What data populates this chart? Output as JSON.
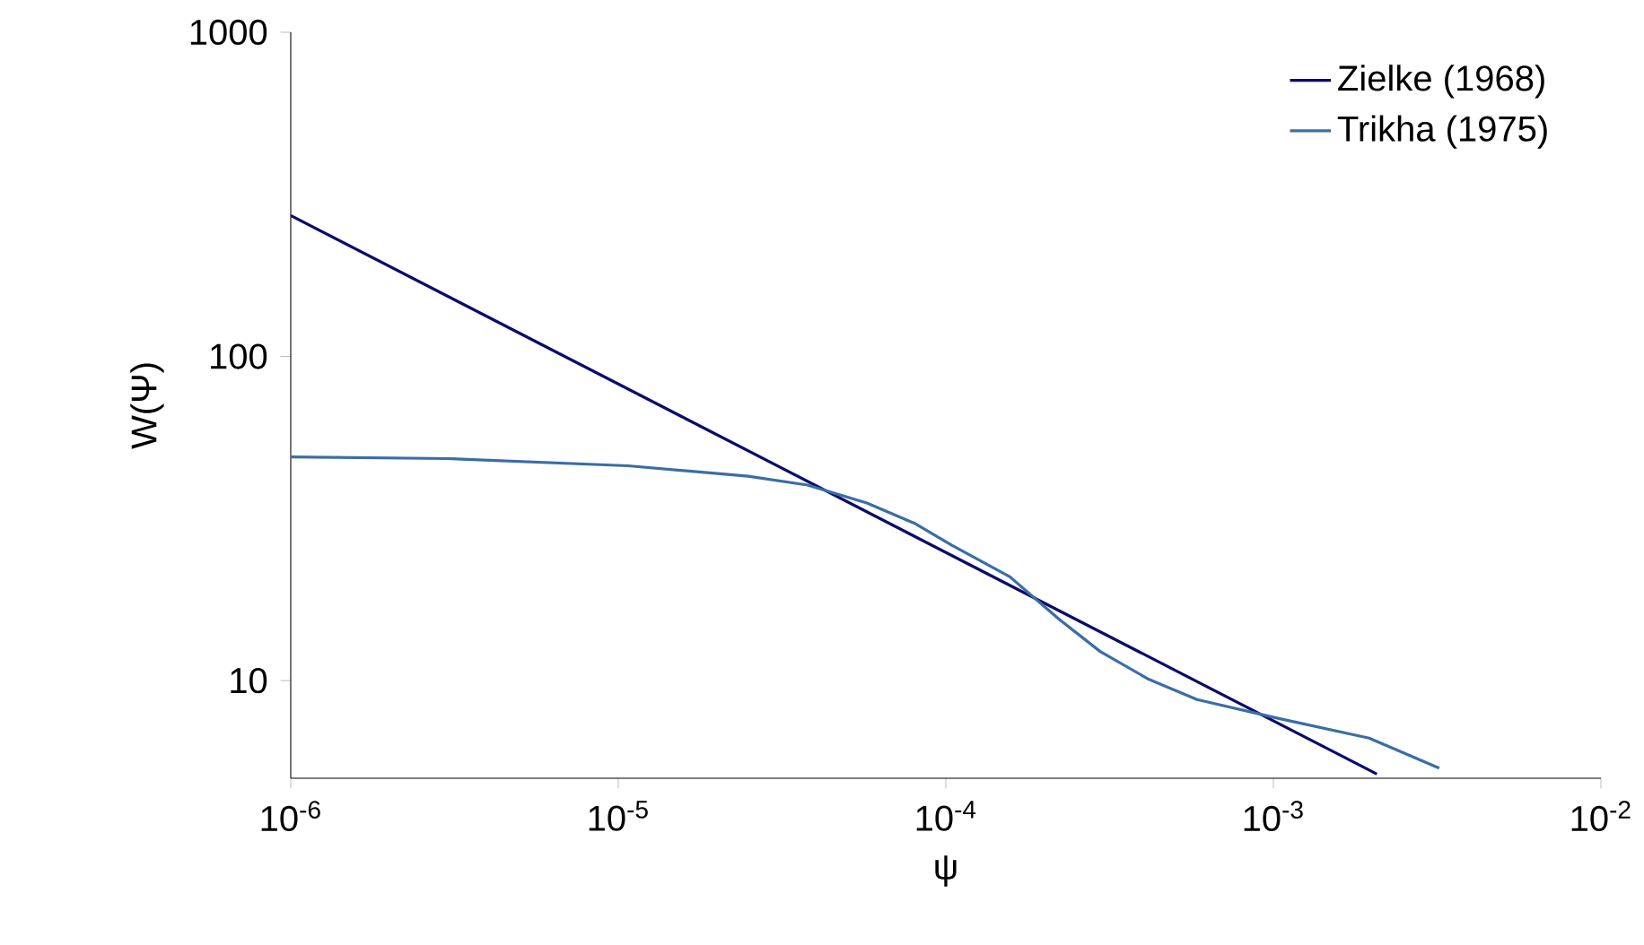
{
  "chart_data": {
    "type": "line",
    "xlabel": "ψ",
    "ylabel": "W(Ψ)",
    "log": "xy",
    "legend": "top right",
    "grid": false,
    "line_style": "solid",
    "marker": "none",
    "xlim": [
      1e-06,
      0.01
    ],
    "ylim": [
      5,
      1000
    ],
    "xticks": [
      {
        "value": 1e-06,
        "label": "10$^{-6}$"
      },
      {
        "value": 1e-05,
        "label": "10$^{-5}$"
      },
      {
        "value": 0.0001,
        "label": "10$^{-4}$"
      },
      {
        "value": 0.001,
        "label": "10$^{-3}$"
      },
      {
        "value": 0.01,
        "label": "10$^{-2}$"
      }
    ],
    "yticks": [
      10,
      100,
      1000
    ],
    "series": [
      {
        "name": "Zielke (1968)",
        "color": "#0b0b6b",
        "x": [
          1e-06,
          0.00207
        ],
        "values": [
          272,
          5.15
        ]
      },
      {
        "name": "Trikha (1975)",
        "color": "#3a6ea5",
        "x": [
          1e-06,
          3.03e-06,
          1.07e-05,
          2.49e-05,
          3.78e-05,
          5.74e-05,
          8.07e-05,
          0.000104,
          0.000157,
          0.000221,
          0.000296,
          0.000416,
          0.000585,
          0.00104,
          0.00196,
          0.00321
        ],
        "values": [
          49.0,
          48.4,
          46.0,
          42.7,
          40.1,
          35.3,
          30.5,
          26.2,
          20.9,
          15.5,
          12.3,
          10.1,
          8.74,
          7.64,
          6.65,
          5.37
        ]
      }
    ]
  }
}
